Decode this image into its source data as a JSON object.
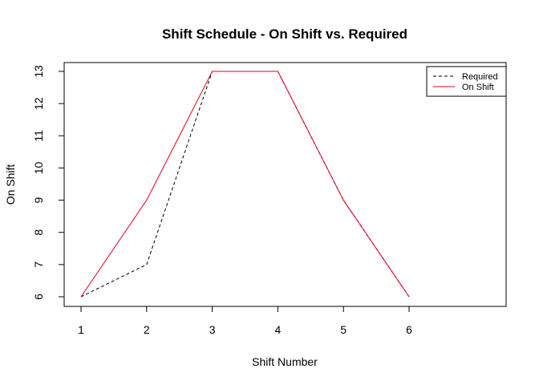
{
  "chart_data": {
    "type": "line",
    "title": "Shift Schedule - On Shift vs. Required",
    "xlabel": "Shift Number",
    "ylabel": "On Shift",
    "x": [
      1,
      2,
      3,
      4,
      5,
      6
    ],
    "xlim": [
      1,
      6
    ],
    "ylim": [
      6,
      13
    ],
    "x_ticks": [
      "1",
      "2",
      "3",
      "4",
      "5",
      "6"
    ],
    "y_ticks": [
      "6",
      "7",
      "8",
      "9",
      "10",
      "11",
      "12",
      "13"
    ],
    "grid": false,
    "legend_position": "top-right",
    "series": [
      {
        "name": "Required",
        "values": [
          6,
          7,
          13,
          13,
          9,
          6
        ],
        "color": "#000000",
        "line_style": "dashed"
      },
      {
        "name": "On Shift",
        "values": [
          6,
          9,
          13,
          13,
          9,
          6
        ],
        "color": "#e0001b",
        "line_style": "solid"
      }
    ]
  }
}
